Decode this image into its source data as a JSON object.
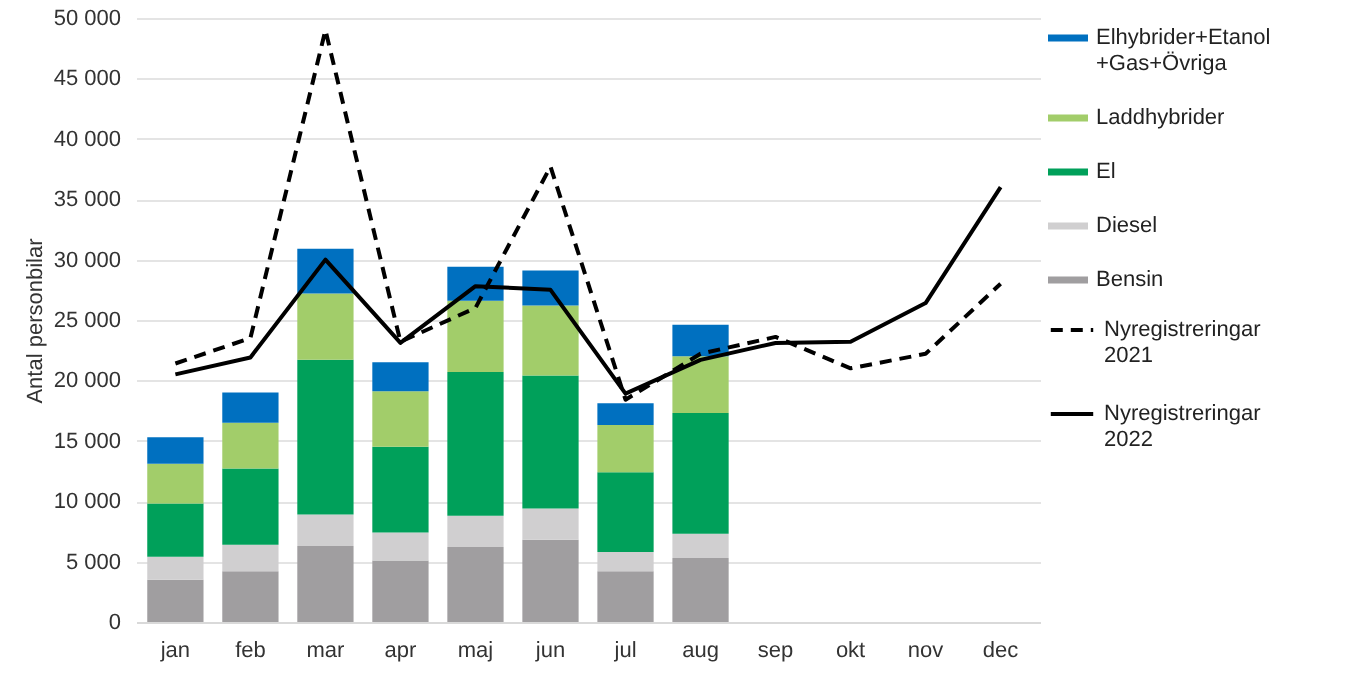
{
  "chart_data": {
    "type": "bar",
    "stacked": true,
    "ylabel": "Antal personbilar",
    "categories": [
      "jan",
      "feb",
      "mar",
      "apr",
      "maj",
      "jun",
      "jul",
      "aug",
      "sep",
      "okt",
      "nov",
      "dec"
    ],
    "series": [
      {
        "name": "Bensin",
        "color": "#a09ea0",
        "values": [
          3500,
          4200,
          6300,
          5100,
          6200,
          6800,
          4200,
          5300,
          null,
          null,
          null,
          null
        ]
      },
      {
        "name": "Diesel",
        "color": "#d0cfd0",
        "values": [
          1900,
          2200,
          2600,
          2300,
          2600,
          2600,
          1600,
          2000,
          null,
          null,
          null,
          null
        ]
      },
      {
        "name": "El",
        "color": "#00a05a",
        "values": [
          4400,
          6300,
          12800,
          7100,
          11900,
          11000,
          6600,
          10000,
          null,
          null,
          null,
          null
        ]
      },
      {
        "name": "Laddhybrider",
        "color": "#a2cd6a",
        "values": [
          3300,
          3800,
          5500,
          4600,
          5900,
          5800,
          3900,
          4700,
          null,
          null,
          null,
          null
        ]
      },
      {
        "name": "Elhybrider+Etanol+Gas+Övriga",
        "color": "#0070c0",
        "values": [
          2200,
          2500,
          3700,
          2400,
          2800,
          2900,
          1800,
          2600,
          null,
          null,
          null,
          null
        ]
      },
      {
        "name": "Nyregistreringar 2021",
        "type": "line",
        "line_style": "dashed",
        "color": "#000000",
        "values": [
          21400,
          23500,
          49000,
          23200,
          26000,
          37700,
          18400,
          22200,
          23600,
          21000,
          22200,
          28000
        ]
      },
      {
        "name": "Nyregistreringar 2022",
        "type": "line",
        "line_style": "solid",
        "color": "#000000",
        "values": [
          20500,
          21900,
          30000,
          23100,
          27800,
          27500,
          18900,
          21700,
          23100,
          23200,
          26400,
          36000
        ]
      }
    ],
    "ylim": [
      0,
      50000
    ],
    "yticks": [
      {
        "value": 0,
        "label": "0"
      },
      {
        "value": 5000,
        "label": "5 000"
      },
      {
        "value": 10000,
        "label": "10 000"
      },
      {
        "value": 15000,
        "label": "15 000"
      },
      {
        "value": 20000,
        "label": "20 000"
      },
      {
        "value": 25000,
        "label": "25 000"
      },
      {
        "value": 30000,
        "label": "30 000"
      },
      {
        "value": 35000,
        "label": "35 000"
      },
      {
        "value": 40000,
        "label": "40 000"
      },
      {
        "value": 45000,
        "label": "45 000"
      },
      {
        "value": 50000,
        "label": "50 000"
      }
    ],
    "grid": "y",
    "legend": "right"
  }
}
